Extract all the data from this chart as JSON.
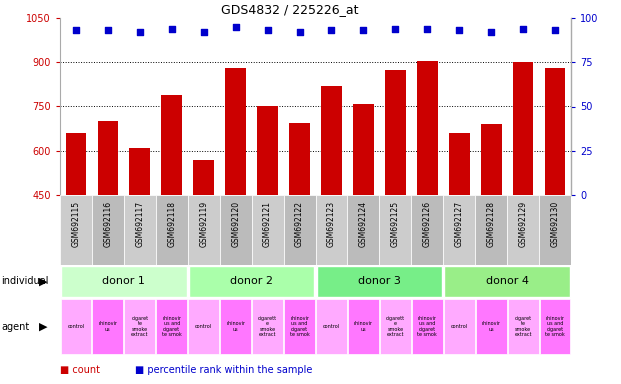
{
  "title": "GDS4832 / 225226_at",
  "samples": [
    "GSM692115",
    "GSM692116",
    "GSM692117",
    "GSM692118",
    "GSM692119",
    "GSM692120",
    "GSM692121",
    "GSM692122",
    "GSM692123",
    "GSM692124",
    "GSM692125",
    "GSM692126",
    "GSM692127",
    "GSM692128",
    "GSM692129",
    "GSM692130"
  ],
  "counts": [
    660,
    700,
    610,
    790,
    570,
    880,
    750,
    695,
    820,
    760,
    875,
    905,
    660,
    690,
    900,
    880
  ],
  "percentile_ranks": [
    93,
    93,
    92,
    94,
    92,
    95,
    93,
    92,
    93,
    93,
    94,
    94,
    93,
    92,
    94,
    93
  ],
  "ylim_left": [
    450,
    1050
  ],
  "ylim_right": [
    0,
    100
  ],
  "yticks_left": [
    450,
    600,
    750,
    900,
    1050
  ],
  "yticks_right": [
    0,
    25,
    50,
    75,
    100
  ],
  "bar_color": "#cc0000",
  "dot_color": "#0000cc",
  "donors": [
    {
      "label": "donor 1",
      "start": 0,
      "end": 4
    },
    {
      "label": "donor 2",
      "start": 4,
      "end": 8
    },
    {
      "label": "donor 3",
      "start": 8,
      "end": 12
    },
    {
      "label": "donor 4",
      "start": 12,
      "end": 16
    }
  ],
  "donor_colors": [
    "#ccffcc",
    "#aaffaa",
    "#77ee88",
    "#99ee88"
  ],
  "agent_labels_short": [
    "control",
    "rhinovir\nus",
    "cigaret\nte\nsmoke\nextract",
    "rhinovir\nus and\ncigaret\nte smok",
    "control",
    "rhinovir\nus",
    "cigarett\ne\nsmoke\nextract",
    "rhinovir\nus and\ncigaret\nte smok",
    "control",
    "rhinovir\nus",
    "cigarett\ne\nsmoke\nextract",
    "rhinovir\nus and\ncigaret\nte smok",
    "control",
    "rhinovir\nus",
    "cigaret\nte\nsmoke\nextract",
    "rhinovir\nus and\ncigaret\nte smok"
  ],
  "agent_colors": [
    "#ffaaff",
    "#ff77ff",
    "#ffaaff",
    "#ff77ff",
    "#ffaaff",
    "#ff77ff",
    "#ffaaff",
    "#ff77ff",
    "#ffaaff",
    "#ff77ff",
    "#ffaaff",
    "#ff77ff",
    "#ffaaff",
    "#ff77ff",
    "#ffaaff",
    "#ff77ff"
  ],
  "grid_color": "#000000",
  "bg_color": "#ffffff",
  "chart_bg": "#ffffff",
  "sample_bg": "#cccccc",
  "xlabel_color": "#cc0000",
  "ylabel_right_color": "#0000cc",
  "legend_bar_color": "#cc0000",
  "legend_dot_color": "#0000cc"
}
